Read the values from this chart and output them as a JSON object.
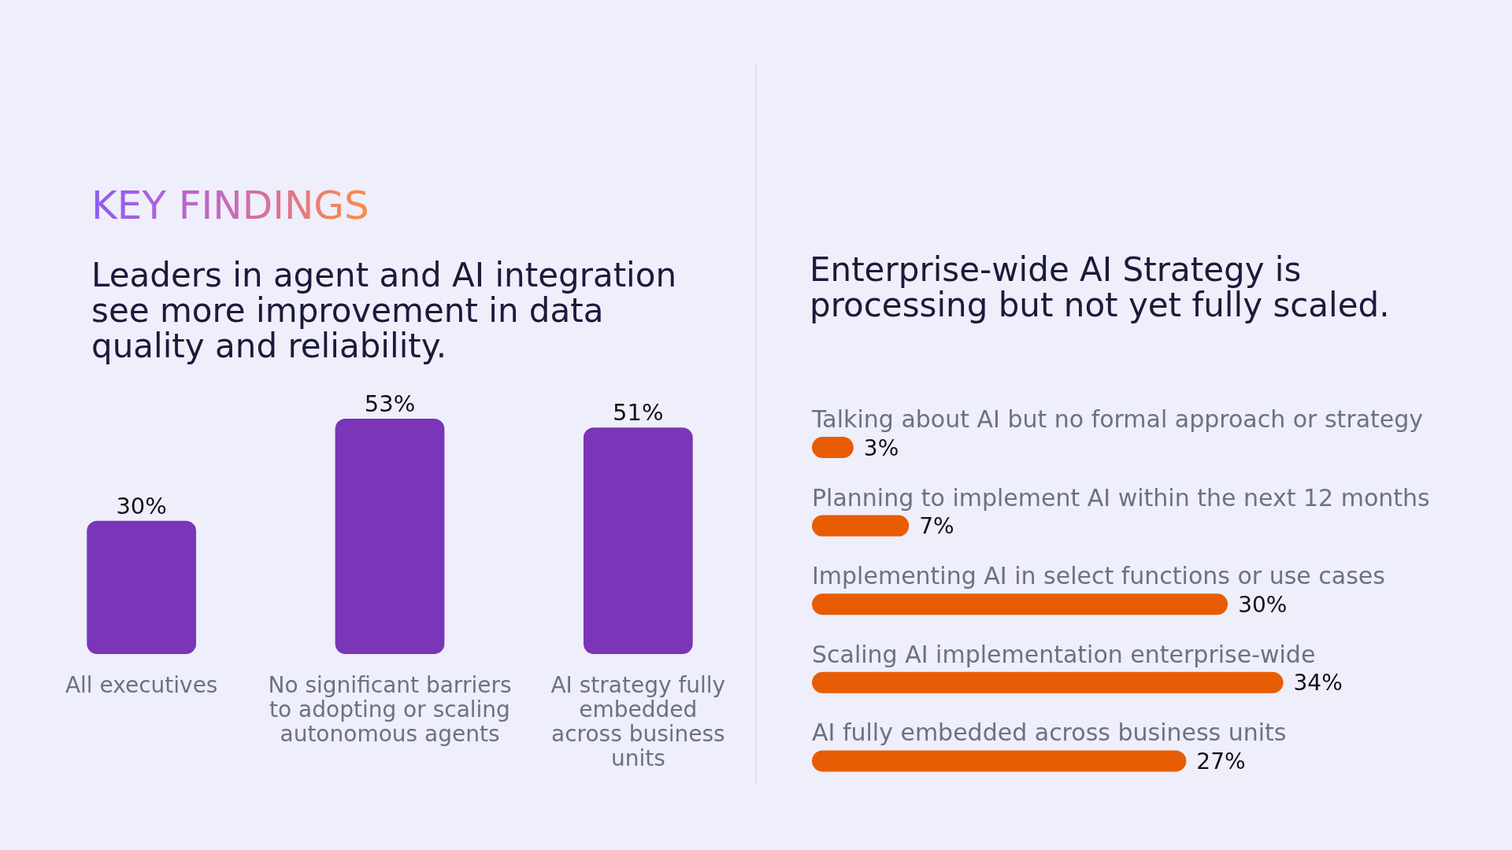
{
  "chart_data": [
    {
      "type": "bar",
      "annotations": [
        "KEY FINDINGS"
      ],
      "title": "Leaders in agent and AI integration see more improvement in data quality and reliability.",
      "categories": [
        "All executives",
        "No significant barriers to adopting or scaling autonomous agents",
        "AI strategy fully embedded across business units"
      ],
      "values": [
        30,
        53,
        51
      ],
      "value_labels": [
        "30%",
        "53%",
        "51%"
      ],
      "color": "#7a35b8",
      "tick_labels": "x"
    },
    {
      "type": "bar",
      "orientation": "horizontal",
      "title": "Enterprise-wide AI Strategy is processing but not yet fully scaled.",
      "categories": [
        "Talking about AI but no formal approach or strategy",
        "Planning to implement AI within the next 12 months",
        "Implementing AI in select functions or use cases",
        "Scaling AI implementation enterprise-wide",
        "AI fully embedded across business units"
      ],
      "values": [
        3,
        7,
        30,
        34,
        27
      ],
      "value_labels": [
        "3%",
        "7%",
        "30%",
        "34%",
        "27%"
      ],
      "color": "#e85c04",
      "tick_labels": "y"
    }
  ]
}
